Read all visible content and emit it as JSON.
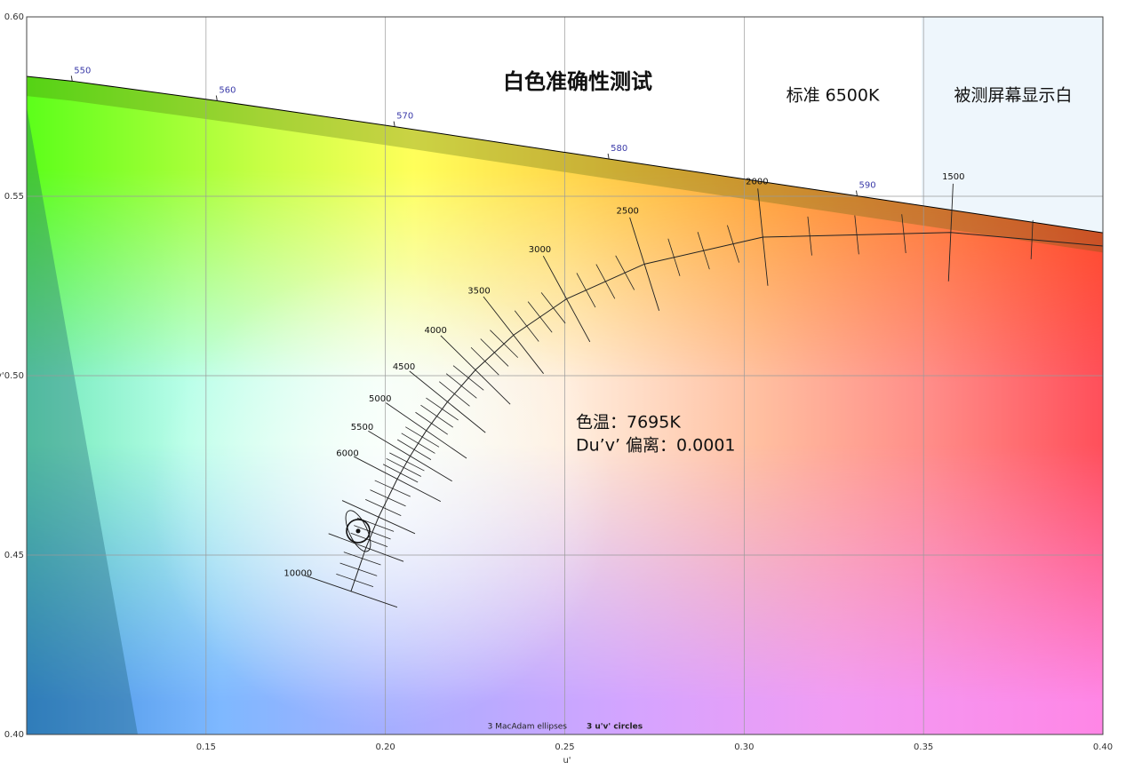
{
  "chart_data": {
    "type": "chromaticity",
    "title": "白色准确性测试",
    "annotations": {
      "standard": "标准 6500K",
      "measured_label": "被测屏幕显示白",
      "cct": "色温：7695K",
      "duv": "Du’v’ 偏离：0.0001"
    },
    "x_label": "u'",
    "y_label": "v'",
    "xlim": [
      0.1,
      0.4
    ],
    "ylim": [
      0.4,
      0.6
    ],
    "xticks": [
      0.15,
      {
        "value": 0.2,
        "label": "0.20"
      },
      0.25,
      {
        "value": 0.3,
        "label": "0.30"
      },
      0.35,
      {
        "value": 0.4,
        "label": "0.40"
      }
    ],
    "yticks": [
      {
        "value": 0.4,
        "label": "0.40"
      },
      0.45,
      {
        "value": 0.5,
        "label": "0.50"
      },
      0.55,
      {
        "value": 0.6,
        "label": "0.60"
      }
    ],
    "grid": true,
    "spectral_locus": {
      "wavelengths": [
        null,
        550,
        560,
        570,
        580,
        590,
        null
      ],
      "u": [
        0.0792,
        0.1127,
        0.1531,
        0.2026,
        0.2623,
        0.3315,
        0.4035
      ],
      "v": [
        0.5856,
        0.5821,
        0.5766,
        0.5694,
        0.5604,
        0.5501,
        0.5393
      ],
      "color": "#000000",
      "label_color": "#3a3aa8"
    },
    "planckian_locus": {
      "cct": [
        10000,
        null,
        null,
        6000,
        5500,
        5000,
        4500,
        4000,
        3500,
        3000,
        2500,
        2000,
        1500,
        null
      ],
      "u": [
        0.1904,
        0.1946,
        0.1981,
        0.2033,
        0.2069,
        0.2114,
        0.2173,
        0.2251,
        0.2357,
        0.2505,
        0.2722,
        0.3052,
        0.3576,
        0.4481
      ],
      "v": [
        0.4399,
        0.4521,
        0.4606,
        0.4712,
        0.4776,
        0.4847,
        0.4927,
        0.5016,
        0.5113,
        0.5214,
        0.5311,
        0.5386,
        0.5399,
        0.5319
      ],
      "color": "#222222"
    },
    "measured": {
      "u": 0.1924,
      "v": 0.4567,
      "color": "#111111"
    },
    "legend": {
      "ellipses": "3  MacAdam ellipses",
      "circles": "3  u'v' circles"
    }
  }
}
